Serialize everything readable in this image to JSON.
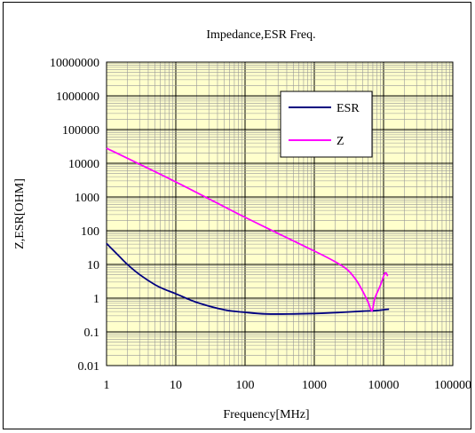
{
  "chart_data": {
    "type": "line",
    "title": "Impedance,ESR Freq.",
    "xlabel": "Frequency[MHz]",
    "ylabel": "Z,ESR[OHM]",
    "x_scale": "log",
    "y_scale": "log",
    "xlim": [
      1,
      100000
    ],
    "ylim": [
      0.01,
      10000000
    ],
    "x_ticks": [
      "1",
      "10",
      "100",
      "1000",
      "10000",
      "100000"
    ],
    "y_ticks": [
      "0.01",
      "0.1",
      "1",
      "10",
      "100",
      "1000",
      "10000",
      "100000",
      "1000000",
      "10000000"
    ],
    "grid": true,
    "plot_background": "#FFFFCC",
    "legend_position": "upper-center-right",
    "series": [
      {
        "name": "ESR",
        "color": "#000080",
        "x": [
          1,
          1.5,
          2,
          3,
          5,
          7,
          10,
          20,
          50,
          100,
          200,
          500,
          1000,
          2000,
          5000,
          8000,
          12000
        ],
        "y": [
          42,
          18,
          10,
          5,
          2.5,
          1.8,
          1.35,
          0.75,
          0.45,
          0.38,
          0.34,
          0.34,
          0.35,
          0.37,
          0.41,
          0.43,
          0.47
        ]
      },
      {
        "name": "Z",
        "color": "#FF00FF",
        "x": [
          1,
          10,
          100,
          1000,
          2000,
          3000,
          4000,
          5000,
          6000,
          6800,
          7500,
          9000,
          10500,
          11500
        ],
        "y": [
          28000,
          2800,
          250,
          25,
          12,
          7,
          3.5,
          1.6,
          0.75,
          0.42,
          1.0,
          2.4,
          5.5,
          4.5
        ]
      }
    ]
  }
}
